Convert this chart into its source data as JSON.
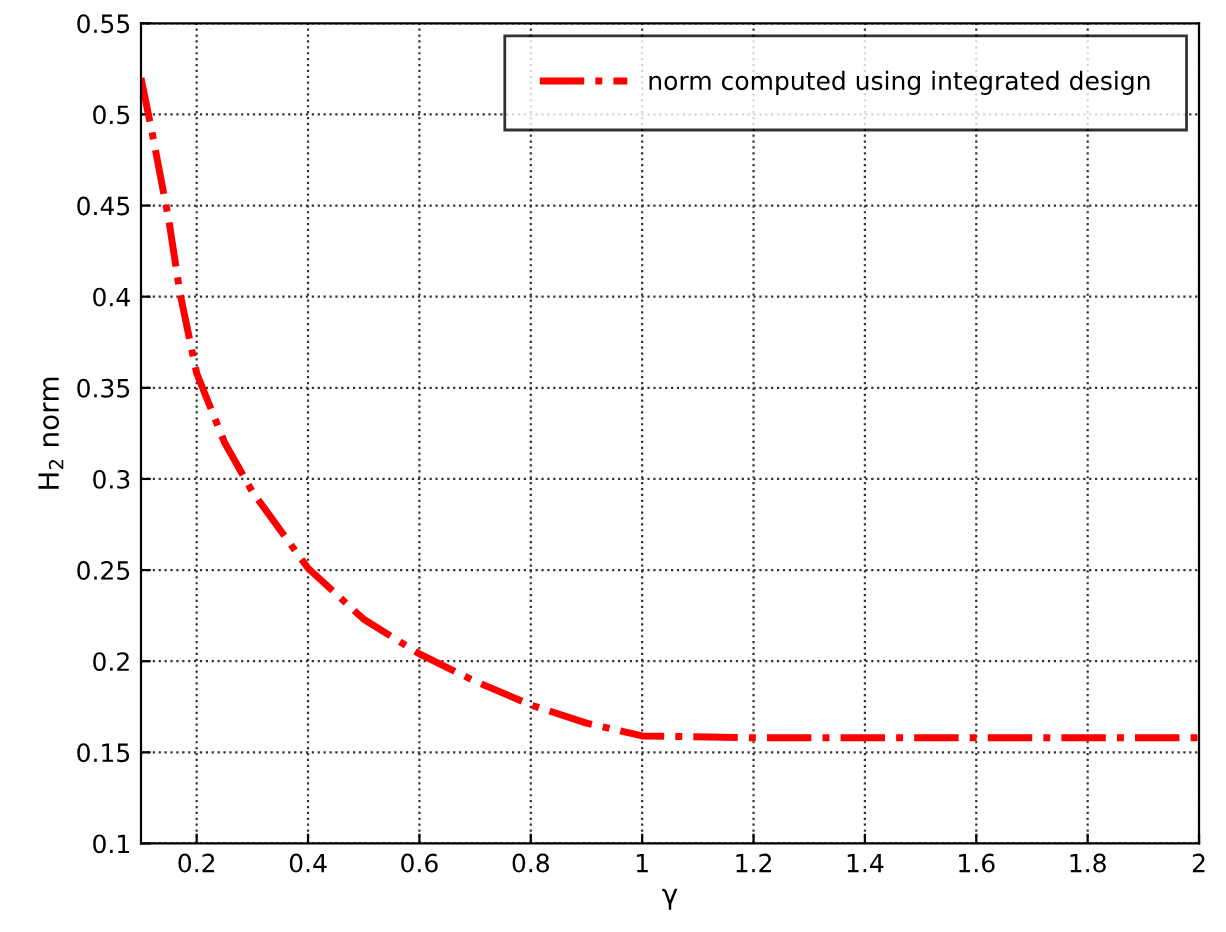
{
  "chart_data": {
    "type": "line",
    "xlabel": "γ",
    "ylabel": "H$_{2}$ norm",
    "xlim": [
      0.1,
      2
    ],
    "xticks": [
      0.2,
      0.4,
      0.6,
      0.8,
      1,
      1.2,
      1.4,
      1.6,
      1.8,
      2
    ],
    "ylim": [
      0.1,
      0.55
    ],
    "yticks": [
      0.1,
      0.15,
      0.2,
      0.25,
      0.3,
      0.35,
      0.4,
      0.45,
      0.5,
      0.55
    ],
    "grid": true,
    "legend": "top right",
    "line_style": "dashdot",
    "marker": "none",
    "series": [
      {
        "name": "norm computed using integrated design",
        "color": "#ff0000",
        "x": [
          0.1,
          0.12,
          0.15,
          0.17,
          0.2,
          0.25,
          0.3,
          0.4,
          0.5,
          0.6,
          0.7,
          0.8,
          0.9,
          1.0,
          1.2,
          1.4,
          1.6,
          1.8,
          2.0
        ],
        "values": [
          0.52,
          0.49,
          0.442,
          0.402,
          0.358,
          0.32,
          0.293,
          0.251,
          0.223,
          0.204,
          0.189,
          0.176,
          0.166,
          0.159,
          0.158,
          0.158,
          0.158,
          0.158,
          0.158
        ]
      }
    ]
  }
}
